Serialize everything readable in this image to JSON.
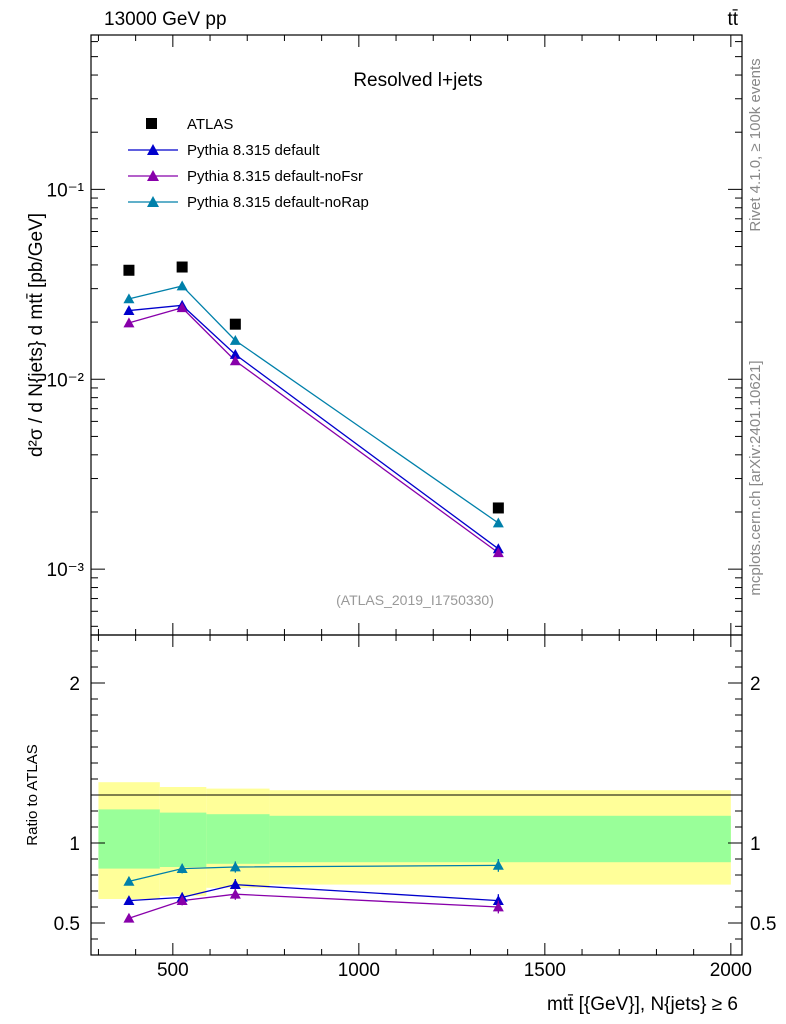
{
  "header": {
    "left_label": "13000 GeV pp",
    "right_label": "tt̄"
  },
  "side_labels": {
    "rivet": "Rivet 4.1.0, ≥ 100k events",
    "mcplots": "mcplots.cern.ch [arXiv:2401.10621]"
  },
  "chart_data": {
    "type": "line",
    "title": "Resolved l+jets",
    "analysis_label": "(ATLAS_2019_I1750330)",
    "ylabel_main": "d²σ / d N{jets} d mtt̄ [pb/GeV]",
    "ylabel_ratio": "Ratio to ATLAS",
    "xlabel": "mtt̄ [{GeV}], N{jets} ≥ 6",
    "xlim": [
      280,
      2030
    ],
    "ylim_main": [
      0.00045,
      0.65
    ],
    "ylim_ratio": [
      0.3,
      2.3
    ],
    "yscale_main": "log",
    "x_ticks": [
      500,
      1000,
      1500,
      2000
    ],
    "x_tick_labels": [
      "500",
      "1000",
      "1500",
      "2000"
    ],
    "y_ticks_main": [
      0.001,
      0.01,
      0.1
    ],
    "y_tick_labels_main": [
      "10⁻³",
      "10⁻²",
      "10⁻¹"
    ],
    "y_ticks_ratio": [
      0.5,
      1,
      2
    ],
    "y_tick_labels_ratio": [
      "0.5",
      "1",
      "2"
    ],
    "bin_edges": [
      300,
      465,
      590,
      760,
      2000
    ],
    "x": [
      382,
      525,
      668,
      1375
    ],
    "data": {
      "name": "ATLAS",
      "color": "#000000",
      "values": [
        0.0375,
        0.039,
        0.0195,
        0.0021
      ]
    },
    "series": [
      {
        "name": "Pythia 8.315 default",
        "color": "#0000cc",
        "values": [
          0.023,
          0.0245,
          0.0135,
          0.00128
        ],
        "ratio": [
          0.64,
          0.66,
          0.74,
          0.64
        ],
        "ratio_err": [
          0.025,
          0.03,
          0.035,
          0.04
        ]
      },
      {
        "name": "Pythia 8.315 default-noFsr",
        "color": "#8800aa",
        "values": [
          0.0198,
          0.0238,
          0.0125,
          0.00122
        ],
        "ratio": [
          0.53,
          0.64,
          0.68,
          0.6
        ],
        "ratio_err": [
          0.025,
          0.03,
          0.035,
          0.04
        ]
      },
      {
        "name": "Pythia 8.315 default-noRap",
        "color": "#0080aa",
        "values": [
          0.0265,
          0.031,
          0.016,
          0.00175
        ],
        "ratio": [
          0.76,
          0.84,
          0.85,
          0.86
        ],
        "ratio_err": [
          0.025,
          0.03,
          0.035,
          0.04
        ]
      }
    ],
    "uncertainty_bands": {
      "inner": {
        "color": "#99ff99",
        "low": [
          0.84,
          0.85,
          0.87,
          0.88
        ],
        "high": [
          1.21,
          1.19,
          1.18,
          1.17
        ]
      },
      "outer": {
        "color": "#ffff99",
        "low": [
          0.65,
          0.67,
          0.72,
          0.74
        ],
        "high": [
          1.38,
          1.35,
          1.34,
          1.33
        ]
      }
    },
    "legend_position": "top-left"
  }
}
